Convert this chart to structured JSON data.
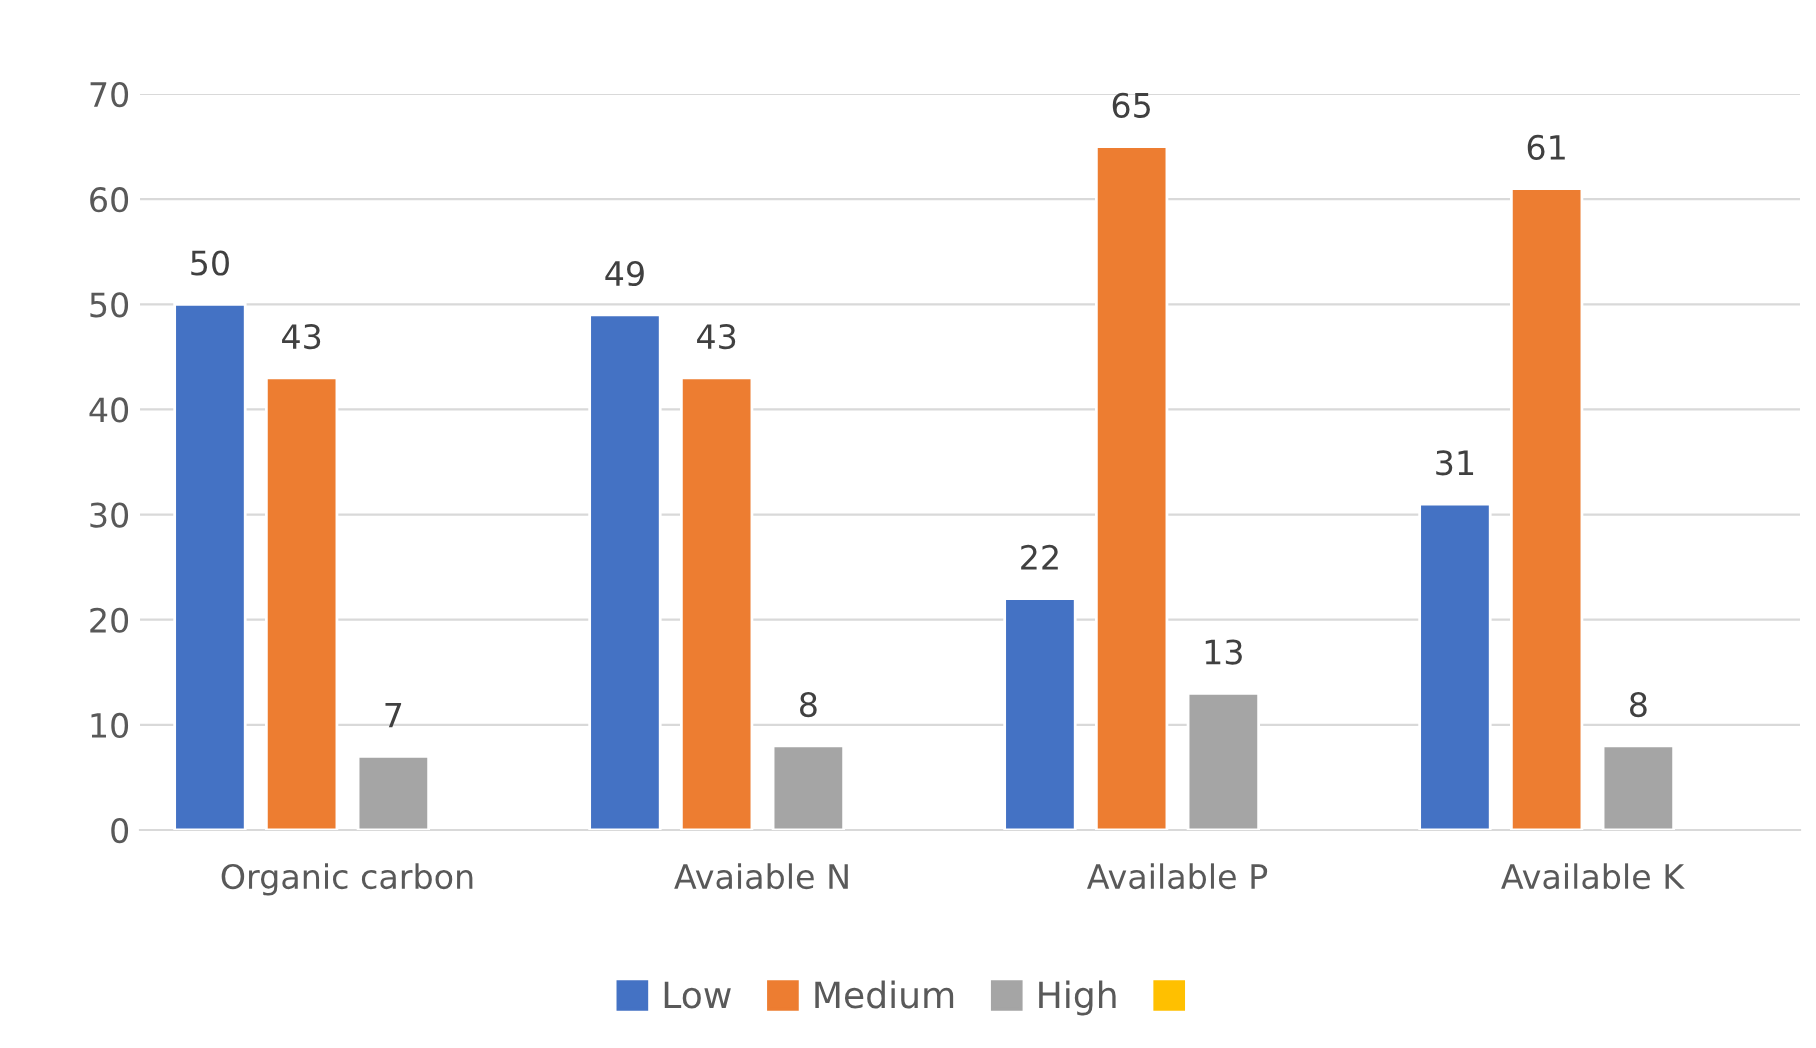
{
  "chart_data": {
    "type": "bar",
    "categories": [
      "Organic carbon",
      "Avaiable N",
      "Available P",
      "Available K"
    ],
    "series": [
      {
        "name": "Low",
        "color": "#4472c4",
        "values": [
          50,
          49,
          22,
          31
        ]
      },
      {
        "name": "Medium",
        "color": "#ed7d31",
        "values": [
          43,
          43,
          65,
          61
        ]
      },
      {
        "name": "High",
        "color": "#a5a5a5",
        "values": [
          7,
          8,
          13,
          8
        ]
      },
      {
        "color": "#ffc000",
        "values": [
          null,
          null,
          null,
          null
        ]
      }
    ],
    "ylim": [
      0,
      70
    ],
    "yticks": [
      0,
      10,
      20,
      30,
      40,
      50,
      60,
      70
    ],
    "grid": "y",
    "legend": "bottom",
    "data_labels": true
  }
}
